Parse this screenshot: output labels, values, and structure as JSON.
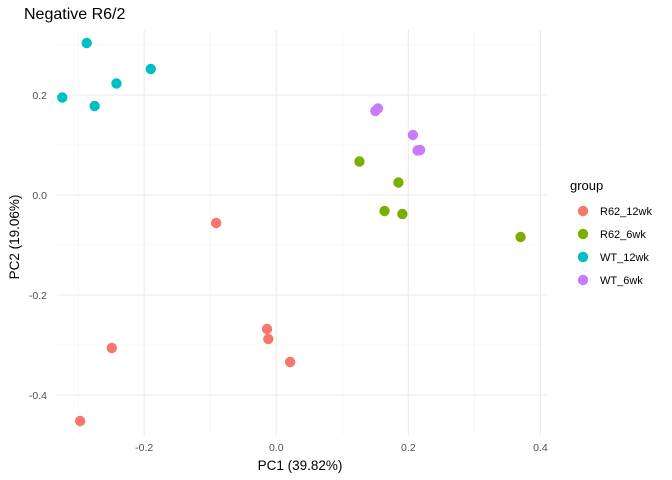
{
  "chart_data": {
    "type": "scatter",
    "title": "Negative R6/2",
    "xlabel": "PC1 (39.82%)",
    "ylabel": "PC2 (19.06%)",
    "xlim": [
      -0.332,
      0.41
    ],
    "ylim": [
      -0.48,
      0.33
    ],
    "x_ticks": [
      -0.2,
      0.0,
      0.2,
      0.4
    ],
    "x_tick_labels": [
      "-0.2",
      "0.0",
      "0.2",
      "0.4"
    ],
    "y_ticks": [
      -0.4,
      -0.2,
      0.0,
      0.2
    ],
    "y_tick_labels": [
      "-0.4",
      "-0.2",
      "0.0",
      "0.2"
    ],
    "grid": true,
    "legend": {
      "title": "group",
      "position": "right"
    },
    "series": [
      {
        "name": "R62_12wk",
        "color": "#F8766D",
        "points": [
          {
            "x": -0.091,
            "y": -0.056
          },
          {
            "x": -0.249,
            "y": -0.306
          },
          {
            "x": -0.297,
            "y": -0.452
          },
          {
            "x": -0.014,
            "y": -0.268
          },
          {
            "x": -0.012,
            "y": -0.288
          },
          {
            "x": 0.021,
            "y": -0.334
          }
        ]
      },
      {
        "name": "R62_6wk",
        "color": "#7CAE00",
        "points": [
          {
            "x": 0.126,
            "y": 0.067
          },
          {
            "x": 0.185,
            "y": 0.025
          },
          {
            "x": 0.164,
            "y": -0.032
          },
          {
            "x": 0.191,
            "y": -0.038
          },
          {
            "x": 0.37,
            "y": -0.084
          }
        ]
      },
      {
        "name": "WT_12wk",
        "color": "#00BFC4",
        "points": [
          {
            "x": -0.287,
            "y": 0.304
          },
          {
            "x": -0.19,
            "y": 0.252
          },
          {
            "x": -0.242,
            "y": 0.223
          },
          {
            "x": -0.324,
            "y": 0.195
          },
          {
            "x": -0.275,
            "y": 0.178
          }
        ]
      },
      {
        "name": "WT_6wk",
        "color": "#C77CFF",
        "points": [
          {
            "x": 0.15,
            "y": 0.168
          },
          {
            "x": 0.154,
            "y": 0.173
          },
          {
            "x": 0.207,
            "y": 0.12
          },
          {
            "x": 0.214,
            "y": 0.089
          },
          {
            "x": 0.218,
            "y": 0.09
          }
        ]
      }
    ]
  }
}
